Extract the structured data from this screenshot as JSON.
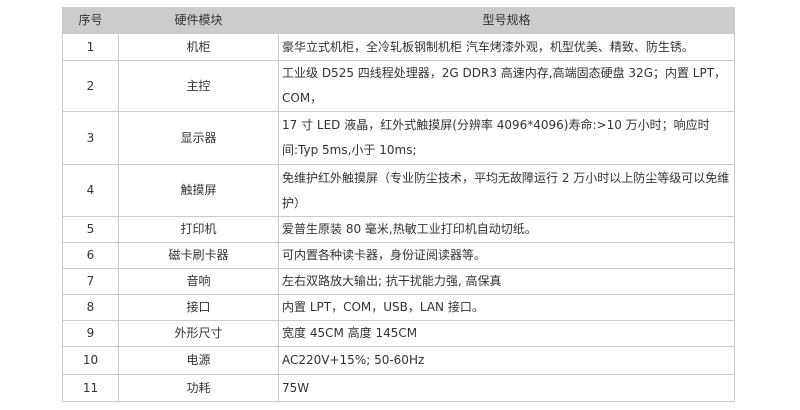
{
  "colors": {
    "header_bg": "#cccccc",
    "border": "#cbcbcb",
    "text": "#333333",
    "page_bg": "#ffffff"
  },
  "table": {
    "headers": {
      "no": "序号",
      "module": "硬件模块",
      "spec": "型号规格"
    },
    "rows": [
      {
        "no": "1",
        "module": "机柜",
        "spec": "豪华立式机柜，全冷轧板钢制机柜 汽车烤漆外观，机型优美、精致、防生锈。"
      },
      {
        "no": "2",
        "module": "主控",
        "spec": "工业级 D525 四线程处理器，2G DDR3 高速内存,高端固态硬盘 32G；内置 LPT，COM，"
      },
      {
        "no": "3",
        "module": "显示器",
        "spec": "17 寸 LED 液晶，红外式触摸屏(分辨率 4096*4096)寿命:>10 万小时；响应时间:Typ 5ms,小于 10ms;"
      },
      {
        "no": "4",
        "module": "触摸屏",
        "spec": "免维护红外触摸屏（专业防尘技术，平均无故障运行 2 万小时以上防尘等级可以免维护）"
      },
      {
        "no": "5",
        "module": "打印机",
        "spec": "爱普生原装 80 毫米,热敏工业打印机自动切纸。"
      },
      {
        "no": "6",
        "module": "磁卡刷卡器",
        "spec": "可内置各种读卡器，身份证阅读器等。"
      },
      {
        "no": "7",
        "module": "音响",
        "spec": "左右双路放大输出; 抗干扰能力强, 高保真"
      },
      {
        "no": "8",
        "module": "接口",
        "spec": "内置 LPT，COM，USB，LAN 接口。"
      },
      {
        "no": "9",
        "module": "外形尺寸",
        "spec": "宽度 45CM 高度 145CM"
      },
      {
        "no": "10",
        "module": "电源",
        "spec": "AC220V+15%; 50-60Hz"
      },
      {
        "no": "11",
        "module": "功耗",
        "spec": "75W"
      }
    ]
  }
}
